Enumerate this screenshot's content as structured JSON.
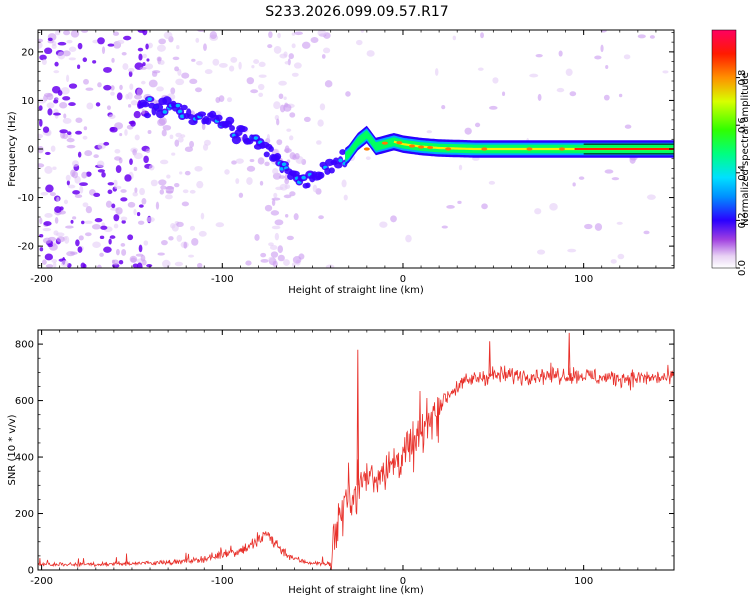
{
  "title": "S233.2026.099.09.57.R17",
  "chart_data": [
    {
      "type": "heatmap",
      "name": "spectrogram",
      "xlabel": "Height of straight line (km)",
      "ylabel": "Frequency (Hz)",
      "xlim": [
        -202,
        150
      ],
      "ylim": [
        -24.5,
        24.5
      ],
      "xticks": [
        -200,
        -100,
        0,
        100
      ],
      "yticks": [
        -20,
        -10,
        0,
        10,
        20
      ],
      "ridge": {
        "x": [
          -145,
          -130,
          -120,
          -110,
          -100,
          -90,
          -80,
          -70,
          -60,
          -55,
          -50,
          -45,
          -40,
          -35,
          -30,
          -25,
          -20,
          -15,
          -10,
          -5,
          0,
          10,
          20,
          40,
          60,
          80,
          100,
          120,
          150
        ],
        "y": [
          9.0,
          8.5,
          7.5,
          6.5,
          5.5,
          3.5,
          1.0,
          -2.0,
          -5.0,
          -7.0,
          -5.5,
          -4.0,
          -3.0,
          -2.5,
          -1.0,
          1.5,
          3.0,
          0.5,
          1.0,
          1.5,
          1.0,
          0.5,
          0.2,
          0.0,
          0.0,
          0.0,
          0.0,
          0.0,
          0.0
        ]
      },
      "colorbar": {
        "label": "Normalized spectral amplitude",
        "range": [
          0.0,
          1.0
        ],
        "ticks": [
          0.0,
          0.2,
          0.4,
          0.6,
          0.8
        ],
        "tick_labels": [
          "0.0",
          "0.2",
          "0.4",
          "0.6",
          "0.8"
        ]
      }
    },
    {
      "type": "line",
      "name": "snr",
      "xlabel": "Height of straight line (km)",
      "ylabel": "SNR (10 * v/v)",
      "xlim": [
        -202,
        150
      ],
      "ylim": [
        0,
        850
      ],
      "xticks": [
        -200,
        -100,
        0,
        100
      ],
      "yticks": [
        0,
        200,
        400,
        600,
        800
      ],
      "color": "#e8302a",
      "series": [
        {
          "name": "SNR",
          "x": [
            -200,
            -180,
            -160,
            -140,
            -120,
            -110,
            -100,
            -90,
            -80,
            -75,
            -70,
            -65,
            -60,
            -55,
            -50,
            -45,
            -40,
            -38,
            -35,
            -32,
            -30,
            -25,
            -20,
            -15,
            -10,
            -5,
            0,
            5,
            10,
            15,
            20,
            25,
            30,
            40,
            50,
            60,
            70,
            80,
            90,
            100,
            110,
            120,
            130,
            140,
            150
          ],
          "y": [
            20,
            20,
            20,
            25,
            30,
            40,
            55,
            70,
            100,
            130,
            90,
            60,
            40,
            30,
            25,
            22,
            22,
            120,
            200,
            240,
            260,
            300,
            330,
            340,
            360,
            380,
            400,
            440,
            480,
            540,
            580,
            620,
            650,
            680,
            690,
            690,
            690,
            690,
            690,
            690,
            680,
            680,
            680,
            680,
            680
          ]
        }
      ],
      "peaks": [
        {
          "x": -25,
          "y": 780
        },
        {
          "x": 92,
          "y": 840
        },
        {
          "x": 48,
          "y": 810
        }
      ]
    }
  ]
}
